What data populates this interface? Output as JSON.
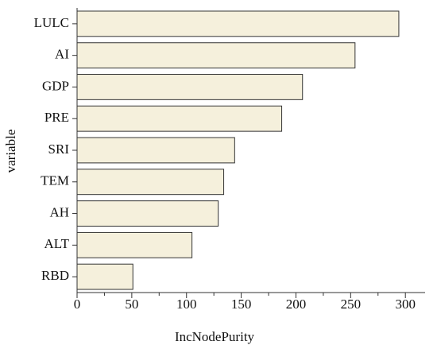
{
  "chart_data": {
    "type": "hbar",
    "categories": [
      "LULC",
      "AI",
      "GDP",
      "PRE",
      "SRI",
      "TEM",
      "AH",
      "ALT",
      "RBD"
    ],
    "values": [
      294,
      254,
      206,
      187,
      144,
      134,
      129,
      105,
      51
    ],
    "color": "#f5f0dc",
    "xlabel": "IncNodePurity",
    "ylabel": "variable",
    "xlim": [
      0,
      318
    ],
    "xticks": [
      0,
      50,
      100,
      150,
      200,
      250,
      300
    ],
    "xminorticks": [
      25,
      75,
      125,
      175,
      225,
      275
    ],
    "grid": false
  }
}
